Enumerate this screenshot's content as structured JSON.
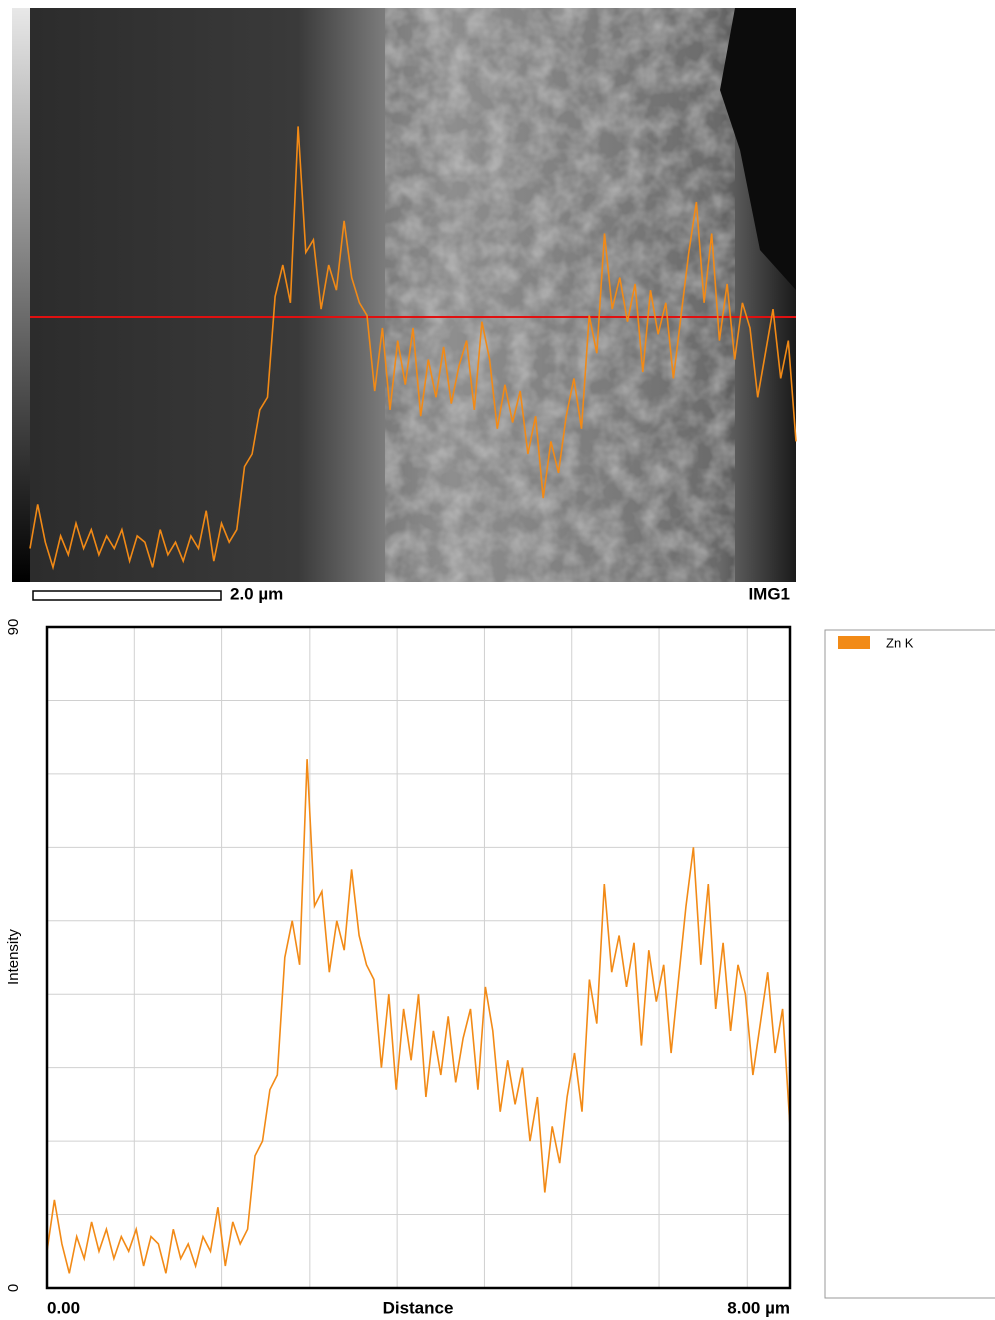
{
  "image": {
    "scale_bar": "2.0 µm",
    "label": "IMG1"
  },
  "chart_data": {
    "type": "line",
    "x_label": "Distance",
    "y_label": "Intensity",
    "x": [
      0,
      0.08,
      0.16,
      0.24,
      0.32,
      0.4,
      0.48,
      0.56,
      0.64,
      0.72,
      0.8,
      0.88,
      0.96,
      1.04,
      1.12,
      1.2,
      1.28,
      1.36,
      1.44,
      1.52,
      1.6,
      1.68,
      1.76,
      1.84,
      1.92,
      2,
      2.08,
      2.16,
      2.24,
      2.32,
      2.4,
      2.48,
      2.56,
      2.64,
      2.72,
      2.8,
      2.88,
      2.96,
      3.04,
      3.12,
      3.2,
      3.28,
      3.36,
      3.44,
      3.52,
      3.6,
      3.68,
      3.76,
      3.84,
      3.92,
      4,
      4.08,
      4.16,
      4.24,
      4.32,
      4.4,
      4.48,
      4.56,
      4.64,
      4.72,
      4.8,
      4.88,
      4.96,
      5.04,
      5.12,
      5.2,
      5.28,
      5.36,
      5.44,
      5.52,
      5.6,
      5.68,
      5.76,
      5.84,
      5.92,
      6,
      6.08,
      6.16,
      6.24,
      6.32,
      6.4,
      6.48,
      6.56,
      6.64,
      6.72,
      6.8,
      6.88,
      6.96,
      7.04,
      7.12,
      7.2,
      7.28,
      7.36,
      7.44,
      7.52,
      7.6,
      7.68,
      7.76,
      7.84,
      7.92,
      8
    ],
    "series": [
      {
        "name": "Zn K",
        "color": "#f28a16",
        "values": [
          5,
          12,
          6,
          2,
          7,
          4,
          9,
          5,
          8,
          4,
          7,
          5,
          8,
          3,
          7,
          6,
          2,
          8,
          4,
          6,
          3,
          7,
          5,
          11,
          3,
          9,
          6,
          8,
          18,
          20,
          27,
          29,
          45,
          50,
          44,
          72,
          52,
          54,
          43,
          50,
          46,
          57,
          48,
          44,
          42,
          30,
          40,
          27,
          38,
          31,
          40,
          26,
          35,
          29,
          37,
          28,
          34,
          38,
          27,
          41,
          35,
          24,
          31,
          25,
          30,
          20,
          26,
          13,
          22,
          17,
          26,
          32,
          24,
          42,
          36,
          55,
          43,
          48,
          41,
          47,
          33,
          46,
          39,
          44,
          32,
          42,
          52,
          60,
          44,
          55,
          38,
          47,
          35,
          44,
          40,
          29,
          36,
          43,
          32,
          38,
          22
        ]
      }
    ],
    "xlim": [
      0,
      8
    ],
    "ylim": [
      0,
      90
    ],
    "xticks": [
      {
        "value": 0,
        "label": "0.00"
      },
      {
        "value": 8,
        "label": "8.00 µm"
      }
    ],
    "yticks": [
      0,
      90
    ],
    "grid": true,
    "xgrid": [
      0.94,
      1.88,
      2.83,
      3.77,
      4.71,
      5.65,
      6.59,
      7.54
    ],
    "ygrid": [
      10,
      20,
      30,
      40,
      50,
      60,
      70,
      80
    ]
  }
}
